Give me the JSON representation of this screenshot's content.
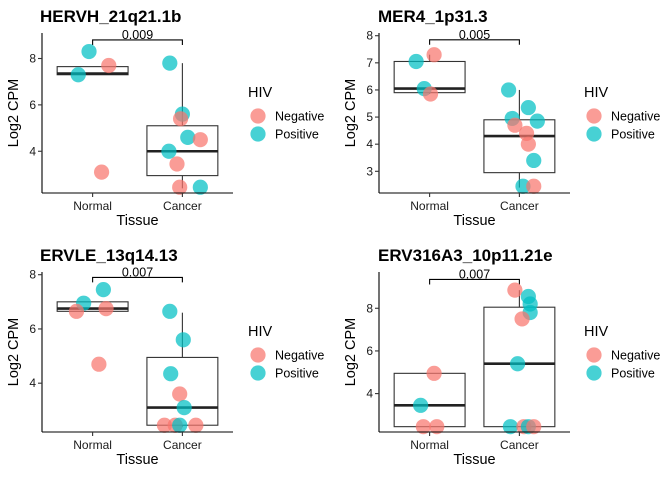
{
  "chart_data": [
    {
      "type": "box",
      "title": "HERVH_21q21.1b",
      "xlabel": "Tissue",
      "ylabel": "Log2 CPM",
      "categories": [
        "Normal",
        "Cancer"
      ],
      "ylim": [
        2.2,
        9.1
      ],
      "yticks": [
        4,
        6,
        8
      ],
      "boxes": [
        {
          "category": "Normal",
          "q1": 7.3,
          "median": 7.35,
          "q3": 7.65,
          "min": 7.3,
          "max": 7.65
        },
        {
          "category": "Cancer",
          "q1": 2.95,
          "median": 4.0,
          "q3": 5.1,
          "min": 2.4,
          "max": 7.8
        }
      ],
      "points": [
        {
          "x": "Normal",
          "y": 8.3,
          "hiv": "Positive",
          "jitter": -0.04
        },
        {
          "x": "Normal",
          "y": 7.3,
          "hiv": "Positive",
          "jitter": -0.16
        },
        {
          "x": "Normal",
          "y": 7.7,
          "hiv": "Negative",
          "jitter": 0.18
        },
        {
          "x": "Normal",
          "y": 3.1,
          "hiv": "Negative",
          "jitter": 0.1
        },
        {
          "x": "Cancer",
          "y": 7.8,
          "hiv": "Positive",
          "jitter": -0.14
        },
        {
          "x": "Cancer",
          "y": 5.6,
          "hiv": "Positive",
          "jitter": 0.0
        },
        {
          "x": "Cancer",
          "y": 5.4,
          "hiv": "Negative",
          "jitter": -0.02
        },
        {
          "x": "Cancer",
          "y": 4.6,
          "hiv": "Positive",
          "jitter": 0.06
        },
        {
          "x": "Cancer",
          "y": 4.5,
          "hiv": "Negative",
          "jitter": 0.2
        },
        {
          "x": "Cancer",
          "y": 4.0,
          "hiv": "Positive",
          "jitter": -0.15
        },
        {
          "x": "Cancer",
          "y": 3.45,
          "hiv": "Negative",
          "jitter": -0.06
        },
        {
          "x": "Cancer",
          "y": 2.45,
          "hiv": "Negative",
          "jitter": -0.03
        },
        {
          "x": "Cancer",
          "y": 2.45,
          "hiv": "Positive",
          "jitter": 0.2
        }
      ],
      "comparison": {
        "label": "0.009",
        "y": 8.8
      }
    },
    {
      "type": "box",
      "title": "MER4_1p31.3",
      "xlabel": "Tissue",
      "ylabel": "Log2 CPM",
      "categories": [
        "Normal",
        "Cancer"
      ],
      "ylim": [
        2.2,
        8.1
      ],
      "yticks": [
        3,
        4,
        5,
        6,
        7,
        8
      ],
      "boxes": [
        {
          "category": "Normal",
          "q1": 5.9,
          "median": 6.05,
          "q3": 7.05,
          "min": 5.85,
          "max": 7.3
        },
        {
          "category": "Cancer",
          "q1": 2.95,
          "median": 4.3,
          "q3": 4.9,
          "min": 2.4,
          "max": 6.0
        }
      ],
      "points": [
        {
          "x": "Normal",
          "y": 7.3,
          "hiv": "Negative",
          "jitter": 0.05
        },
        {
          "x": "Normal",
          "y": 7.05,
          "hiv": "Positive",
          "jitter": -0.15
        },
        {
          "x": "Normal",
          "y": 6.05,
          "hiv": "Positive",
          "jitter": -0.06
        },
        {
          "x": "Normal",
          "y": 5.85,
          "hiv": "Negative",
          "jitter": 0.01
        },
        {
          "x": "Cancer",
          "y": 6.0,
          "hiv": "Positive",
          "jitter": -0.12
        },
        {
          "x": "Cancer",
          "y": 5.35,
          "hiv": "Positive",
          "jitter": 0.1
        },
        {
          "x": "Cancer",
          "y": 4.95,
          "hiv": "Positive",
          "jitter": -0.08
        },
        {
          "x": "Cancer",
          "y": 4.85,
          "hiv": "Positive",
          "jitter": 0.2
        },
        {
          "x": "Cancer",
          "y": 4.7,
          "hiv": "Negative",
          "jitter": -0.05
        },
        {
          "x": "Cancer",
          "y": 4.4,
          "hiv": "Negative",
          "jitter": 0.08
        },
        {
          "x": "Cancer",
          "y": 4.0,
          "hiv": "Negative",
          "jitter": 0.1
        },
        {
          "x": "Cancer",
          "y": 3.4,
          "hiv": "Positive",
          "jitter": 0.16
        },
        {
          "x": "Cancer",
          "y": 2.45,
          "hiv": "Positive",
          "jitter": 0.04
        },
        {
          "x": "Cancer",
          "y": 2.45,
          "hiv": "Negative",
          "jitter": 0.16
        }
      ],
      "comparison": {
        "label": "0.005",
        "y": 7.85
      }
    },
    {
      "type": "box",
      "title": "ERVLE_13q14.13",
      "xlabel": "Tissue",
      "ylabel": "Log2 CPM",
      "categories": [
        "Normal",
        "Cancer"
      ],
      "ylim": [
        2.2,
        8.1
      ],
      "yticks": [
        4,
        6,
        8
      ],
      "boxes": [
        {
          "category": "Normal",
          "q1": 6.65,
          "median": 6.75,
          "q3": 7.0,
          "min": 6.65,
          "max": 7.0
        },
        {
          "category": "Cancer",
          "q1": 2.45,
          "median": 3.1,
          "q3": 4.95,
          "min": 2.4,
          "max": 6.6
        }
      ],
      "points": [
        {
          "x": "Normal",
          "y": 7.45,
          "hiv": "Positive",
          "jitter": 0.12
        },
        {
          "x": "Normal",
          "y": 6.95,
          "hiv": "Positive",
          "jitter": -0.1
        },
        {
          "x": "Normal",
          "y": 6.75,
          "hiv": "Negative",
          "jitter": 0.15
        },
        {
          "x": "Normal",
          "y": 6.65,
          "hiv": "Negative",
          "jitter": -0.18
        },
        {
          "x": "Normal",
          "y": 4.7,
          "hiv": "Negative",
          "jitter": 0.07
        },
        {
          "x": "Cancer",
          "y": 6.65,
          "hiv": "Positive",
          "jitter": -0.14
        },
        {
          "x": "Cancer",
          "y": 5.6,
          "hiv": "Positive",
          "jitter": 0.01
        },
        {
          "x": "Cancer",
          "y": 4.35,
          "hiv": "Positive",
          "jitter": -0.13
        },
        {
          "x": "Cancer",
          "y": 3.6,
          "hiv": "Negative",
          "jitter": -0.03
        },
        {
          "x": "Cancer",
          "y": 3.1,
          "hiv": "Positive",
          "jitter": 0.02
        },
        {
          "x": "Cancer",
          "y": 2.45,
          "hiv": "Negative",
          "jitter": -0.2
        },
        {
          "x": "Cancer",
          "y": 2.45,
          "hiv": "Negative",
          "jitter": -0.08
        },
        {
          "x": "Cancer",
          "y": 2.45,
          "hiv": "Positive",
          "jitter": -0.03
        },
        {
          "x": "Cancer",
          "y": 2.45,
          "hiv": "Negative",
          "jitter": 0.15
        }
      ],
      "comparison": {
        "label": "0.007",
        "y": 7.9
      }
    },
    {
      "type": "box",
      "title": "ERV316A3_10p11.21e",
      "xlabel": "Tissue",
      "ylabel": "Log2 CPM",
      "categories": [
        "Normal",
        "Cancer"
      ],
      "ylim": [
        2.2,
        9.7
      ],
      "yticks": [
        4,
        6,
        8
      ],
      "boxes": [
        {
          "category": "Normal",
          "q1": 2.45,
          "median": 3.45,
          "q3": 4.95,
          "min": 2.45,
          "max": 4.95
        },
        {
          "category": "Cancer",
          "q1": 2.45,
          "median": 5.4,
          "q3": 8.05,
          "min": 2.45,
          "max": 8.85
        }
      ],
      "points": [
        {
          "x": "Normal",
          "y": 4.95,
          "hiv": "Negative",
          "jitter": 0.05
        },
        {
          "x": "Normal",
          "y": 3.45,
          "hiv": "Positive",
          "jitter": -0.1
        },
        {
          "x": "Normal",
          "y": 2.45,
          "hiv": "Negative",
          "jitter": -0.07
        },
        {
          "x": "Normal",
          "y": 2.45,
          "hiv": "Negative",
          "jitter": 0.08
        },
        {
          "x": "Cancer",
          "y": 8.85,
          "hiv": "Negative",
          "jitter": -0.05
        },
        {
          "x": "Cancer",
          "y": 8.55,
          "hiv": "Positive",
          "jitter": 0.1
        },
        {
          "x": "Cancer",
          "y": 8.2,
          "hiv": "Positive",
          "jitter": 0.12
        },
        {
          "x": "Cancer",
          "y": 7.8,
          "hiv": "Positive",
          "jitter": 0.12
        },
        {
          "x": "Cancer",
          "y": 7.5,
          "hiv": "Negative",
          "jitter": 0.03
        },
        {
          "x": "Cancer",
          "y": 5.4,
          "hiv": "Positive",
          "jitter": -0.02
        },
        {
          "x": "Cancer",
          "y": 2.45,
          "hiv": "Positive",
          "jitter": -0.1
        },
        {
          "x": "Cancer",
          "y": 2.45,
          "hiv": "Negative",
          "jitter": 0.05
        },
        {
          "x": "Cancer",
          "y": 2.45,
          "hiv": "Positive",
          "jitter": 0.1
        },
        {
          "x": "Cancer",
          "y": 2.45,
          "hiv": "Negative",
          "jitter": 0.16
        }
      ],
      "comparison": {
        "label": "0.007",
        "y": 9.35
      }
    }
  ],
  "legend": {
    "title": "HIV",
    "placement": "right",
    "entries": [
      {
        "label": "Negative",
        "color": "#F8766D"
      },
      {
        "label": "Positive",
        "color": "#00BFC4"
      }
    ]
  },
  "point_opacity": 0.72
}
